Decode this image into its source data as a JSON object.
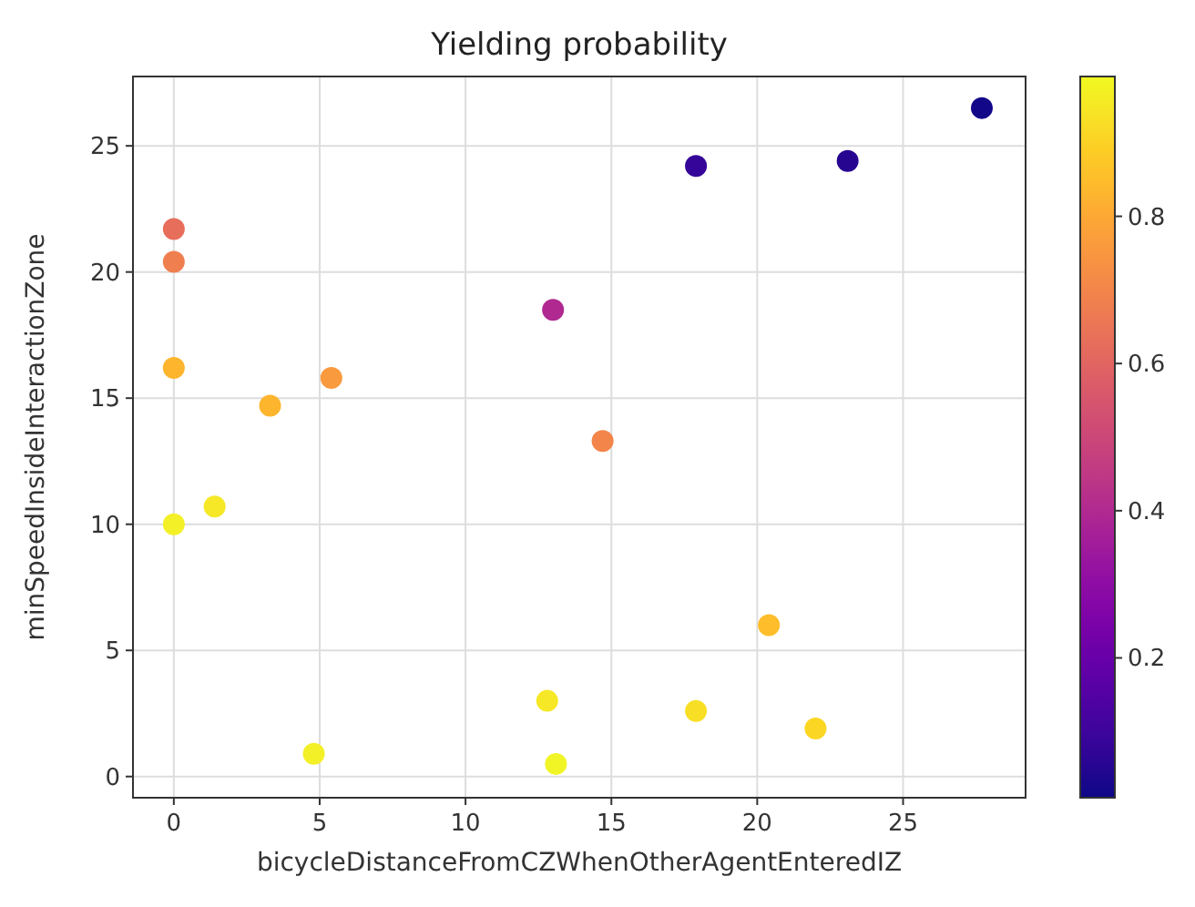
{
  "chart_data": {
    "type": "scatter",
    "title": "Yielding probability",
    "xlabel": "bicycleDistanceFromCZWhenOtherAgentEnteredIZ",
    "ylabel": "minSpeedInsideInteractionZone",
    "x": [
      27.7,
      17.9,
      23.1,
      0,
      0,
      13.0,
      0,
      5.4,
      3.3,
      14.7,
      1.4,
      0,
      20.4,
      12.8,
      17.9,
      22.0,
      4.8,
      13.1
    ],
    "values": [
      26.5,
      24.2,
      24.4,
      21.7,
      20.4,
      18.5,
      16.2,
      15.8,
      14.7,
      13.3,
      10.7,
      10.0,
      6.0,
      3.0,
      2.6,
      1.9,
      0.9,
      0.5
    ],
    "cvalues": [
      0.02,
      0.08,
      0.05,
      0.63,
      0.68,
      0.4,
      0.83,
      0.76,
      0.83,
      0.7,
      0.95,
      0.97,
      0.85,
      0.95,
      0.93,
      0.91,
      0.97,
      0.98
    ],
    "xlim": [
      -1.4,
      29.2
    ],
    "xticks": [
      0,
      5,
      10,
      15,
      20,
      25
    ],
    "ylim": [
      -0.84,
      27.75
    ],
    "yticks": [
      0,
      5,
      10,
      15,
      20,
      25
    ],
    "clim": [
      0.01,
      0.99
    ],
    "cticks": [
      0.2,
      0.4,
      0.6,
      0.8
    ],
    "grid": true,
    "marker": "circle"
  }
}
